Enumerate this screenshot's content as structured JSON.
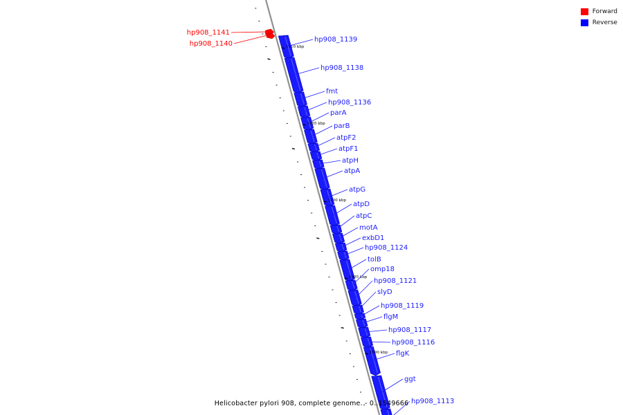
{
  "caption": "Helicobacter pylori 908, complete genome. - 0..1549666",
  "legend": [
    {
      "label": "Forward",
      "color": "#ff0000"
    },
    {
      "label": "Reverse",
      "color": "#0000ff"
    }
  ],
  "colors": {
    "forward": "#ff0000",
    "reverse": "#1a1aff",
    "reverse_dark": "#0000aa",
    "backbone": "#888888"
  },
  "position_ticks": [
    "1110 kbp",
    "1105 kbp",
    "1100 kbp",
    "1095 kbp",
    "1090 kbp"
  ],
  "genes": [
    {
      "name": "hp908_1141",
      "strand": "forward"
    },
    {
      "name": "hp908_1140",
      "strand": "forward"
    },
    {
      "name": "hp908_1139",
      "strand": "reverse"
    },
    {
      "name": "hp908_1138",
      "strand": "reverse"
    },
    {
      "name": "fmt",
      "strand": "reverse"
    },
    {
      "name": "hp908_1136",
      "strand": "reverse"
    },
    {
      "name": "parA",
      "strand": "reverse"
    },
    {
      "name": "parB",
      "strand": "reverse"
    },
    {
      "name": "atpF2",
      "strand": "reverse"
    },
    {
      "name": "atpF1",
      "strand": "reverse"
    },
    {
      "name": "atpH",
      "strand": "reverse"
    },
    {
      "name": "atpA",
      "strand": "reverse"
    },
    {
      "name": "atpG",
      "strand": "reverse"
    },
    {
      "name": "atpD",
      "strand": "reverse"
    },
    {
      "name": "atpC",
      "strand": "reverse"
    },
    {
      "name": "motA",
      "strand": "reverse"
    },
    {
      "name": "exbD1",
      "strand": "reverse"
    },
    {
      "name": "hp908_1124",
      "strand": "reverse"
    },
    {
      "name": "tolB",
      "strand": "reverse"
    },
    {
      "name": "omp18",
      "strand": "reverse"
    },
    {
      "name": "hp908_1121",
      "strand": "reverse"
    },
    {
      "name": "slyD",
      "strand": "reverse"
    },
    {
      "name": "hp908_1119",
      "strand": "reverse"
    },
    {
      "name": "flgM",
      "strand": "reverse"
    },
    {
      "name": "hp908_1117",
      "strand": "reverse"
    },
    {
      "name": "hp908_1116",
      "strand": "reverse"
    },
    {
      "name": "flgK",
      "strand": "reverse"
    },
    {
      "name": "ggt",
      "strand": "reverse"
    },
    {
      "name": "hp908_1113",
      "strand": "reverse"
    }
  ]
}
